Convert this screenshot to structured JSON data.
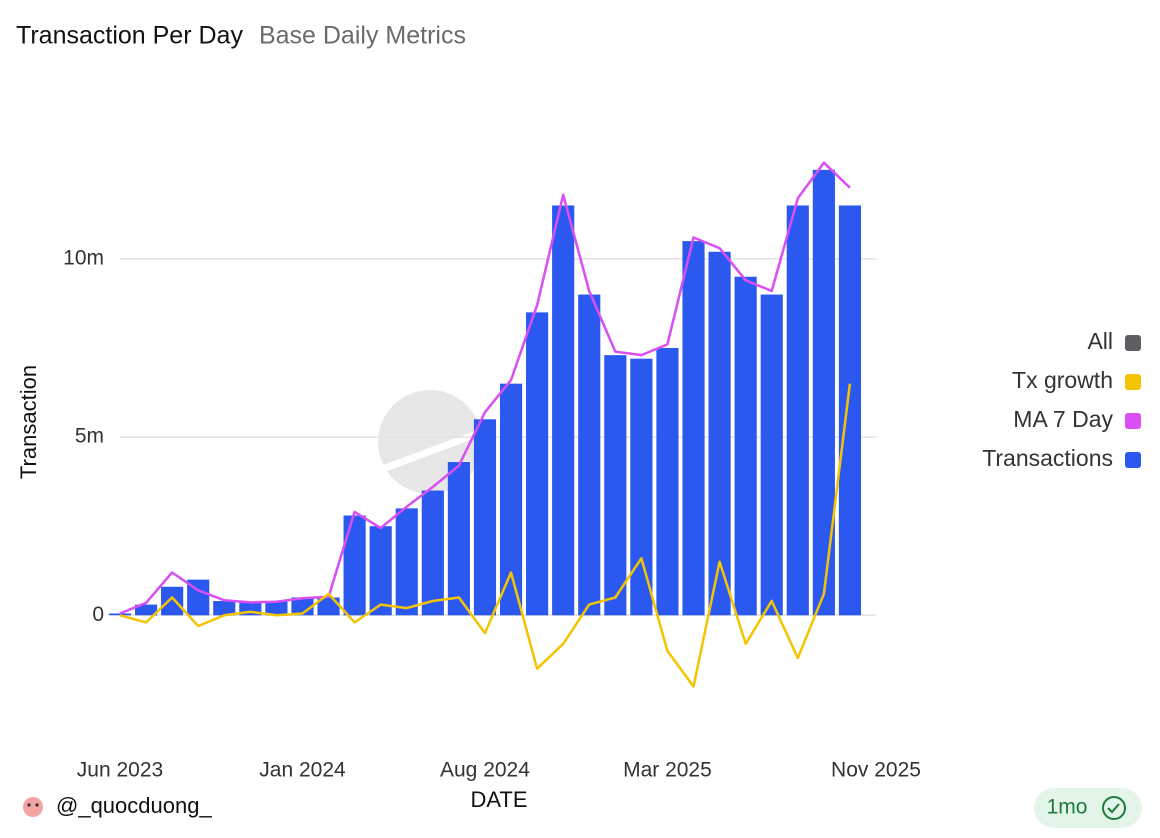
{
  "chart_data": {
    "type": "bar",
    "title": "Transaction Per Day",
    "subtitle": "Base Daily Metrics",
    "xlabel": "DATE",
    "ylabel": "Transaction",
    "x": [
      "2023-06",
      "2023-07",
      "2023-08",
      "2023-09",
      "2023-10",
      "2023-11",
      "2023-12",
      "2024-01",
      "2024-02",
      "2024-03",
      "2024-04",
      "2024-05",
      "2024-06",
      "2024-07",
      "2024-08",
      "2024-09",
      "2024-10",
      "2024-11",
      "2024-12",
      "2025-01",
      "2025-02",
      "2025-03",
      "2025-04",
      "2025-05",
      "2025-06",
      "2025-07",
      "2025-08",
      "2025-09",
      "2025-10"
    ],
    "series": [
      {
        "name": "Transactions",
        "type": "bar",
        "color": "#2b59f0",
        "values": [
          50000,
          300000,
          800000,
          1000000,
          400000,
          350000,
          400000,
          500000,
          500000,
          2800000,
          2500000,
          3000000,
          3500000,
          4300000,
          5500000,
          6500000,
          8500000,
          11500000,
          9000000,
          7300000,
          7200000,
          7500000,
          10500000,
          10200000,
          9500000,
          9000000,
          11500000,
          12500000,
          11500000
        ]
      },
      {
        "name": "MA 7 Day",
        "type": "line",
        "color": "#d94ff5",
        "values": [
          50000,
          350000,
          1200000,
          700000,
          420000,
          360000,
          380000,
          480000,
          520000,
          2900000,
          2450000,
          3050000,
          3600000,
          4200000,
          5700000,
          6600000,
          8700000,
          11800000,
          9100000,
          7400000,
          7300000,
          7600000,
          10600000,
          10300000,
          9400000,
          9100000,
          11700000,
          12700000,
          12000000
        ]
      },
      {
        "name": "Tx growth",
        "type": "line",
        "color": "#f5c400",
        "values": [
          0,
          -200000,
          500000,
          -300000,
          0,
          100000,
          0,
          50000,
          600000,
          -200000,
          300000,
          200000,
          400000,
          500000,
          -500000,
          1200000,
          -1500000,
          -800000,
          300000,
          500000,
          1600000,
          -1000000,
          -2000000,
          1500000,
          -800000,
          400000,
          -1200000,
          600000,
          6500000
        ]
      }
    ],
    "legend": [
      {
        "name": "All",
        "color": "#5f5f63"
      },
      {
        "name": "Tx growth",
        "color": "#f5c400"
      },
      {
        "name": "MA 7 Day",
        "color": "#d94ff5"
      },
      {
        "name": "Transactions",
        "color": "#2b59f0"
      }
    ],
    "xlim": [
      "2023-06",
      "2025-11"
    ],
    "xticks": [
      {
        "value": "2023-06",
        "label": "Jun 2023"
      },
      {
        "value": "2024-01",
        "label": "Jan 2024"
      },
      {
        "value": "2024-08",
        "label": "Aug 2024"
      },
      {
        "value": "2025-03",
        "label": "Mar 2025"
      },
      {
        "value": "2025-11",
        "label": "Nov 2025"
      }
    ],
    "ylim": [
      -3500000,
      14600000
    ],
    "yticks": [
      0,
      {
        "value": 5000000,
        "label": "5m"
      },
      {
        "value": 10000000,
        "label": "10m"
      }
    ],
    "grid": true,
    "legend_position": "right"
  },
  "footer": {
    "author": "@_quocduong_",
    "age": "1mo"
  }
}
